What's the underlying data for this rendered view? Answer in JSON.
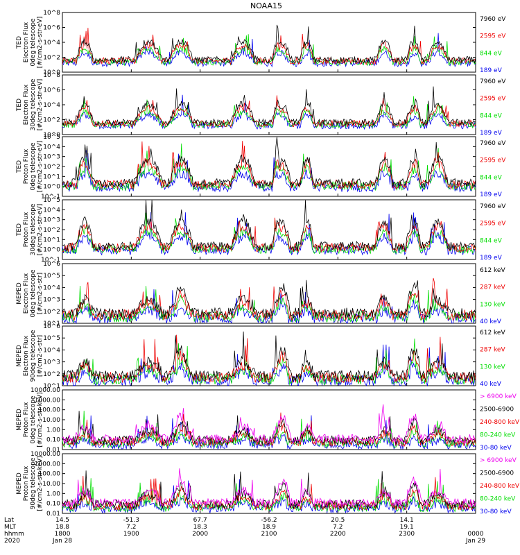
{
  "title": "NOAA15",
  "colors": {
    "black": "#000000",
    "red": "#ee0000",
    "green": "#00dd00",
    "blue": "#0000ee",
    "magenta": "#ee00ee"
  },
  "chart_data": [
    {
      "type": "line",
      "ylabel": [
        "TED",
        "Electron Flux",
        "0deg telescope",
        "[#/cm2-s-str-eV]"
      ],
      "scale": "log",
      "ylim_exp": [
        0,
        8
      ],
      "tick_labels": [
        "10^0",
        "10^2",
        "10^4",
        "10^6",
        "10^8"
      ],
      "series": [
        {
          "name": "7960 eV",
          "color": "black"
        },
        {
          "name": "2595 eV",
          "color": "red"
        },
        {
          "name": "844 eV",
          "color": "green"
        },
        {
          "name": "189 eV",
          "color": "blue"
        }
      ]
    },
    {
      "type": "line",
      "ylabel": [
        "TED",
        "Electron Flux",
        "30deg telescope",
        "[#/cm2-s-str-eV]"
      ],
      "scale": "log",
      "ylim_exp": [
        0,
        8
      ],
      "tick_labels": [
        "10^0",
        "10^2",
        "10^4",
        "10^6",
        "10^8"
      ],
      "series": [
        {
          "name": "7960 eV",
          "color": "black"
        },
        {
          "name": "2595 eV",
          "color": "red"
        },
        {
          "name": "844 eV",
          "color": "green"
        },
        {
          "name": "189 eV",
          "color": "blue"
        }
      ]
    },
    {
      "type": "line",
      "ylabel": [
        "TED",
        "Proton Flux",
        "0deg telescope",
        "[#/cm2-s-str-eV]"
      ],
      "scale": "log",
      "ylim_exp": [
        -1,
        5
      ],
      "tick_labels": [
        "10^-1",
        "10^0",
        "10^1",
        "10^2",
        "10^3",
        "10^4",
        "10^5"
      ],
      "series": [
        {
          "name": "7960 eV",
          "color": "black"
        },
        {
          "name": "2595 eV",
          "color": "red"
        },
        {
          "name": "844 eV",
          "color": "green"
        },
        {
          "name": "189 eV",
          "color": "blue"
        }
      ]
    },
    {
      "type": "line",
      "ylabel": [
        "TED",
        "Proton Flux",
        "30deg telescope",
        "[#/cm2-s-str-eV]"
      ],
      "scale": "log",
      "ylim_exp": [
        -1,
        5
      ],
      "tick_labels": [
        "10^-1",
        "10^0",
        "10^1",
        "10^2",
        "10^3",
        "10^4",
        "10^5"
      ],
      "series": [
        {
          "name": "7960 eV",
          "color": "black"
        },
        {
          "name": "2595 eV",
          "color": "red"
        },
        {
          "name": "844 eV",
          "color": "green"
        },
        {
          "name": "189 eV",
          "color": "blue"
        }
      ]
    },
    {
      "type": "line",
      "ylabel": [
        "MEPED",
        "Electron Flux",
        "0deg telescope",
        "[#/cm2-s-str]"
      ],
      "scale": "log",
      "ylim_exp": [
        1,
        6
      ],
      "tick_labels": [
        "10^1",
        "10^2",
        "10^3",
        "10^4",
        "10^5",
        "10^6"
      ],
      "series": [
        {
          "name": "612 keV",
          "color": "black"
        },
        {
          "name": "287 keV",
          "color": "red"
        },
        {
          "name": "130 keV",
          "color": "green"
        },
        {
          "name": "40 keV",
          "color": "blue"
        }
      ]
    },
    {
      "type": "line",
      "ylabel": [
        "MEPED",
        "Electron Flux",
        "90deg telescope",
        "[#/cm2-s-str]"
      ],
      "scale": "log",
      "ylim_exp": [
        1,
        6
      ],
      "tick_labels": [
        "10^1",
        "10^2",
        "10^3",
        "10^4",
        "10^5",
        "10^6"
      ],
      "series": [
        {
          "name": "612 keV",
          "color": "black"
        },
        {
          "name": "287 keV",
          "color": "red"
        },
        {
          "name": "130 keV",
          "color": "green"
        },
        {
          "name": "40 keV",
          "color": "blue"
        }
      ]
    },
    {
      "type": "line",
      "ylabel": [
        "MEPED",
        "Proton Flux",
        "0deg telescope",
        "[#/cm2-s-str-keV]"
      ],
      "scale": "log",
      "ylim_exp": [
        -2,
        4
      ],
      "tick_labels": [
        "0.01",
        "0.10",
        "1.00",
        "10.00",
        "100.00",
        "1000.00",
        "10000.00"
      ],
      "series": [
        {
          "name": "> 6900 keV",
          "color": "magenta"
        },
        {
          "name": "2500-6900",
          "color": "black"
        },
        {
          "name": "240-800 keV",
          "color": "red"
        },
        {
          "name": "80-240 keV",
          "color": "green"
        },
        {
          "name": "30-80 keV",
          "color": "blue"
        }
      ]
    },
    {
      "type": "line",
      "ylabel": [
        "MEPED",
        "Proton Flux",
        "90deg telescope",
        "[#/cm2-s-str-keV]"
      ],
      "scale": "log",
      "ylim_exp": [
        -2,
        4
      ],
      "tick_labels": [
        "0.01",
        "0.10",
        "1.00",
        "10.00",
        "100.00",
        "1000.00",
        "10000.00"
      ],
      "series": [
        {
          "name": "> 6900 keV",
          "color": "magenta"
        },
        {
          "name": "2500-6900",
          "color": "black"
        },
        {
          "name": "240-800 keV",
          "color": "red"
        },
        {
          "name": "80-240 keV",
          "color": "green"
        },
        {
          "name": "30-80 keV",
          "color": "blue"
        }
      ]
    }
  ],
  "x_axis": {
    "row_labels": [
      "Lat",
      "MLT",
      "hhmm",
      "2020"
    ],
    "ticks": [
      {
        "t": 0.0,
        "lat": "14.5",
        "mlt": "18.8",
        "hhmm": "1800",
        "date": "Jan 28"
      },
      {
        "t": 1.0,
        "lat": "-51.3",
        "mlt": "7.2",
        "hhmm": "1900",
        "date": ""
      },
      {
        "t": 2.0,
        "lat": "67.7",
        "mlt": "18.3",
        "hhmm": "2000",
        "date": ""
      },
      {
        "t": 3.0,
        "lat": "-56.2",
        "mlt": "18.9",
        "hhmm": "2100",
        "date": ""
      },
      {
        "t": 4.0,
        "lat": "20.5",
        "mlt": "7.2",
        "hhmm": "2200",
        "date": ""
      },
      {
        "t": 5.0,
        "lat": "14.1",
        "mlt": "19.1",
        "hhmm": "2300",
        "date": ""
      },
      {
        "t": 6.0,
        "lat": "",
        "mlt": "",
        "hhmm": "0000",
        "date": "Jan 29"
      }
    ],
    "range_hours": [
      0,
      6
    ]
  }
}
